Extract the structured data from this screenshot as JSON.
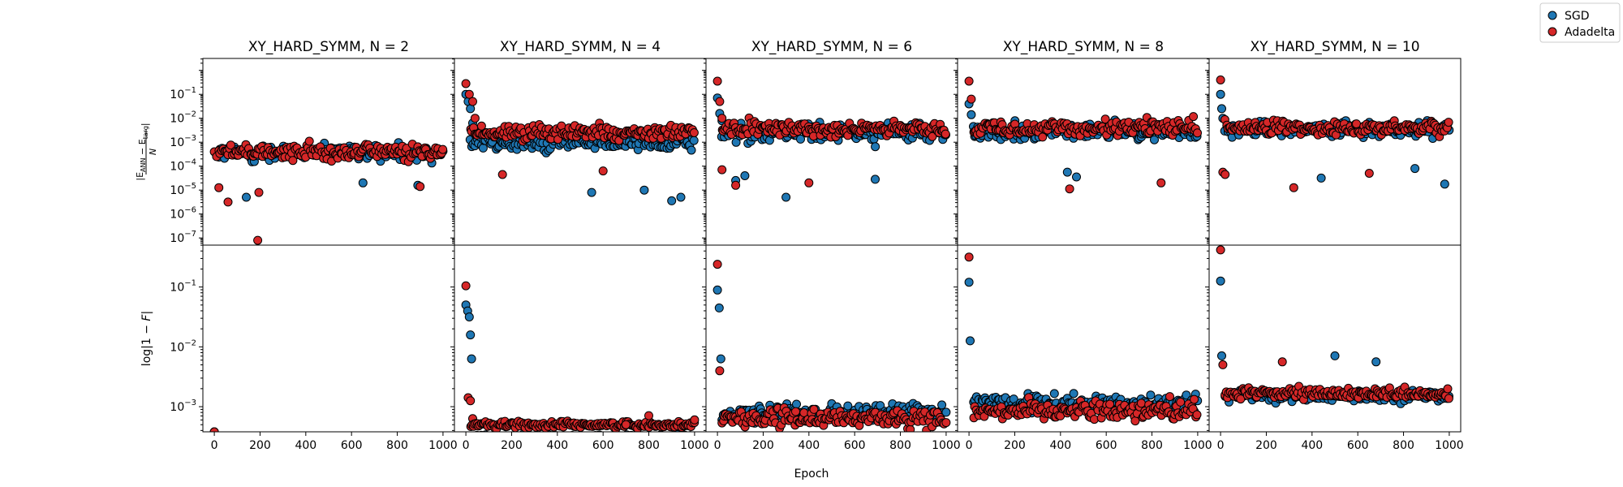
{
  "chart_data": {
    "type": "scatter",
    "xlabel": "Epoch",
    "x_ticks": [
      "0",
      "200",
      "400",
      "600",
      "800",
      "1000"
    ],
    "xlim": [
      -50,
      1050
    ],
    "legend": {
      "placement": "top-right",
      "entries": [
        {
          "name": "SGD",
          "color": "#1f77b4"
        },
        {
          "name": "Adadelta",
          "color": "#d62728"
        }
      ]
    },
    "rows": [
      {
        "ylabel": "|E_ANN - E_targ| / N",
        "ylabel_parts": {
          "main": "|E",
          "sub1": "ANN",
          "mid": " − E",
          "sub2": "targ",
          "end": "|",
          "denominator": "N"
        },
        "scale": "log",
        "ylim_log10": [
          -7.3,
          0.5
        ],
        "y_ticks": [
          {
            "exp": -7,
            "base": "10",
            "sup": "−7"
          },
          {
            "exp": -6,
            "base": "10",
            "sup": "−6"
          },
          {
            "exp": -5,
            "base": "10",
            "sup": "−5"
          },
          {
            "exp": -4,
            "base": "10",
            "sup": "−4"
          },
          {
            "exp": -3,
            "base": "10",
            "sup": "−3"
          },
          {
            "exp": -2,
            "base": "10",
            "sup": "−2"
          },
          {
            "exp": -1,
            "base": "10",
            "sup": "−1"
          }
        ]
      },
      {
        "ylabel": "log|1 − F|",
        "ylabel_parts": {
          "main": "log|1 − ",
          "italic": "F",
          "end": "|"
        },
        "scale": "log",
        "ylim_log10": [
          -3.42,
          -0.3
        ],
        "y_ticks": [
          {
            "exp": -3,
            "base": "10",
            "sup": "−3"
          },
          {
            "exp": -2,
            "base": "10",
            "sup": "−2"
          },
          {
            "exp": -1,
            "base": "10",
            "sup": "−1"
          }
        ]
      }
    ],
    "panels": [
      {
        "title": "XY_HARD_SYMM, N = 2",
        "energy": {
          "SGD": {
            "center": -3.45,
            "spread": 0.45,
            "early": [],
            "outliers": [
              [
                140,
                -5.3
              ],
              [
                650,
                -4.7
              ],
              [
                890,
                -4.8
              ]
            ]
          },
          "Adadelta": {
            "center": -3.4,
            "spread": 0.45,
            "early": [
              [
                0,
                -3.4
              ],
              [
                10,
                -3.6
              ]
            ],
            "outliers": [
              [
                20,
                -4.9
              ],
              [
                60,
                -5.5
              ],
              [
                190,
                -7.1
              ],
              [
                195,
                -5.1
              ],
              [
                900,
                -4.85
              ]
            ]
          }
        },
        "fidelity": {
          "SGD": {
            "center": -3.45,
            "spread": 0.0,
            "early": [
              [
                0,
                -3.42
              ]
            ],
            "outliers": []
          },
          "Adadelta": {
            "center": -3.45,
            "spread": 0.0,
            "early": [
              [
                0,
                -3.42
              ]
            ],
            "outliers": []
          }
        }
      },
      {
        "title": "XY_HARD_SYMM, N = 4",
        "energy": {
          "SGD": {
            "center": -3.0,
            "spread": 0.55,
            "early": [
              [
                0,
                -1.0
              ],
              [
                10,
                -1.3
              ],
              [
                20,
                -1.6
              ],
              [
                30,
                -2.2
              ]
            ],
            "outliers": [
              [
                550,
                -5.1
              ],
              [
                780,
                -5.0
              ],
              [
                900,
                -5.45
              ],
              [
                940,
                -5.3
              ]
            ]
          },
          "Adadelta": {
            "center": -2.6,
            "spread": 0.45,
            "early": [
              [
                0,
                -0.55
              ],
              [
                15,
                -1.0
              ],
              [
                30,
                -1.3
              ],
              [
                40,
                -2.0
              ]
            ],
            "outliers": [
              [
                160,
                -4.35
              ],
              [
                600,
                -4.2
              ]
            ]
          }
        },
        "fidelity": {
          "SGD": {
            "center": -3.5,
            "spread": 0.05,
            "early": [
              [
                0,
                -1.3
              ],
              [
                8,
                -1.4
              ],
              [
                15,
                -1.5
              ],
              [
                20,
                -1.8
              ],
              [
                25,
                -2.2
              ]
            ],
            "outliers": []
          },
          "Adadelta": {
            "center": -3.3,
            "spread": 0.08,
            "early": [
              [
                0,
                -0.98
              ],
              [
                10,
                -2.85
              ],
              [
                20,
                -2.9
              ],
              [
                30,
                -3.2
              ]
            ],
            "outliers": [
              [
                700,
                -3.3
              ],
              [
                800,
                -3.15
              ],
              [
                1000,
                -3.22
              ]
            ]
          }
        }
      },
      {
        "title": "XY_HARD_SYMM, N = 6",
        "energy": {
          "SGD": {
            "center": -2.6,
            "spread": 0.5,
            "early": [
              [
                0,
                -1.15
              ],
              [
                10,
                -1.8
              ],
              [
                20,
                -2.1
              ]
            ],
            "outliers": [
              [
                300,
                -5.3
              ],
              [
                690,
                -4.55
              ],
              [
                120,
                -4.4
              ],
              [
                80,
                -4.6
              ]
            ]
          },
          "Adadelta": {
            "center": -2.45,
            "spread": 0.4,
            "early": [
              [
                0,
                -0.45
              ],
              [
                10,
                -1.3
              ],
              [
                20,
                -2.0
              ]
            ],
            "outliers": [
              [
                20,
                -4.15
              ],
              [
                80,
                -4.8
              ],
              [
                400,
                -4.7
              ]
            ]
          }
        },
        "fidelity": {
          "SGD": {
            "center": -3.1,
            "spread": 0.2,
            "early": [
              [
                0,
                -1.05
              ],
              [
                8,
                -1.35
              ],
              [
                15,
                -2.2
              ]
            ],
            "outliers": []
          },
          "Adadelta": {
            "center": -3.2,
            "spread": 0.2,
            "early": [
              [
                0,
                -0.62
              ],
              [
                10,
                -2.4
              ]
            ],
            "outliers": []
          }
        }
      },
      {
        "title": "XY_HARD_SYMM, N = 8",
        "energy": {
          "SGD": {
            "center": -2.55,
            "spread": 0.45,
            "early": [
              [
                0,
                -1.4
              ],
              [
                10,
                -1.85
              ]
            ],
            "outliers": [
              [
                470,
                -4.45
              ],
              [
                430,
                -4.25
              ]
            ]
          },
          "Adadelta": {
            "center": -2.4,
            "spread": 0.45,
            "early": [
              [
                0,
                -0.45
              ],
              [
                10,
                -1.2
              ]
            ],
            "outliers": [
              [
                440,
                -4.95
              ],
              [
                840,
                -4.7
              ]
            ]
          }
        },
        "fidelity": {
          "SGD": {
            "center": -2.95,
            "spread": 0.22,
            "early": [
              [
                0,
                -0.92
              ],
              [
                5,
                -1.9
              ]
            ],
            "outliers": []
          },
          "Adadelta": {
            "center": -3.05,
            "spread": 0.22,
            "early": [
              [
                0,
                -0.5
              ]
            ],
            "outliers": []
          }
        }
      },
      {
        "title": "XY_HARD_SYMM, N = 10",
        "energy": {
          "SGD": {
            "center": -2.45,
            "spread": 0.45,
            "early": [
              [
                0,
                -1.0
              ],
              [
                5,
                -1.6
              ],
              [
                10,
                -2.0
              ]
            ],
            "outliers": [
              [
                980,
                -4.75
              ],
              [
                440,
                -4.5
              ],
              [
                850,
                -4.1
              ]
            ]
          },
          "Adadelta": {
            "center": -2.4,
            "spread": 0.4,
            "early": [
              [
                0,
                -0.4
              ],
              [
                10,
                -4.25
              ],
              [
                20,
                -4.35
              ]
            ],
            "outliers": [
              [
                320,
                -4.9
              ],
              [
                650,
                -4.3
              ]
            ]
          }
        },
        "fidelity": {
          "SGD": {
            "center": -2.82,
            "spread": 0.12,
            "early": [
              [
                0,
                -0.9
              ],
              [
                5,
                -2.15
              ]
            ],
            "outliers": [
              [
                500,
                -2.15
              ],
              [
                680,
                -2.25
              ]
            ]
          },
          "Adadelta": {
            "center": -2.78,
            "spread": 0.12,
            "early": [
              [
                0,
                -0.38
              ],
              [
                10,
                -2.3
              ]
            ],
            "outliers": [
              [
                270,
                -2.25
              ]
            ]
          }
        }
      }
    ]
  }
}
